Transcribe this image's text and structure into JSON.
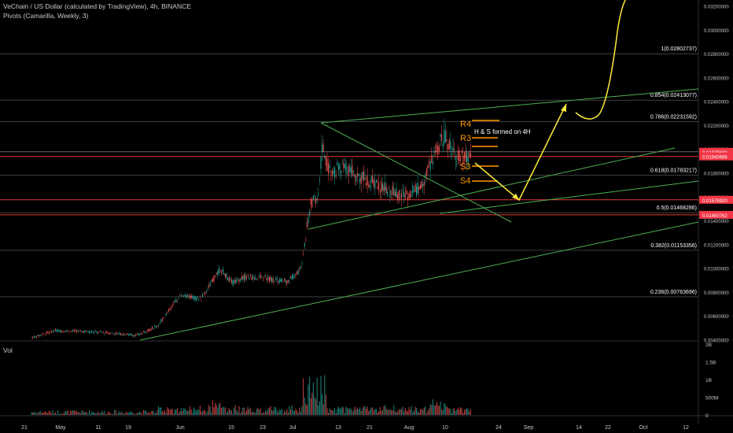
{
  "header": {
    "title": "VeChain / US Dollar (calculated by TradingView), 4h, BINANCE",
    "indicator": "Pivots (Camarilla, Weekly, 3)",
    "volume_label": "Vol"
  },
  "chart_data": {
    "type": "candlestick",
    "symbol": "VeChain / US Dollar",
    "interval": "4h",
    "exchange": "BINANCE",
    "x_tick_labels": [
      "21",
      "May",
      "11",
      "19",
      "Jun",
      "15",
      "23",
      "Jul",
      "13",
      "21",
      "Aug",
      "10",
      "24",
      "Sep",
      "14",
      "22",
      "Oct",
      "12"
    ],
    "price_axis": {
      "ylim": [
        0.004,
        0.032
      ],
      "tick_labels": [
        "0.03200000",
        "0.03000000",
        "0.02800000",
        "0.02600000",
        "0.02400000",
        "0.02200000",
        "0.02000000",
        "0.01800000",
        "0.01600000",
        "0.01400000",
        "0.01200000",
        "0.01000000",
        "0.00800000",
        "0.00600000",
        "0.00400000"
      ]
    },
    "volume_axis": {
      "ylim": [
        0,
        2000000000
      ],
      "tick_labels": [
        "2B",
        "1.5B",
        "1B",
        "500M",
        "0"
      ]
    },
    "price_badges": [
      {
        "label": "0.01979600",
        "color": "#f23645"
      },
      {
        "label": "0.01940686",
        "color": "#f23645"
      },
      {
        "label": "0.01576920",
        "color": "#f23645"
      },
      {
        "label": "0.01450762",
        "color": "#f23645"
      }
    ],
    "fibonacci_levels": [
      {
        "label": "1(0.02802737)",
        "value": 0.02802737
      },
      {
        "label": "0.854(0.02413077)",
        "value": 0.02413077
      },
      {
        "label": "0.786(0.02231592)",
        "value": 0.02231592
      },
      {
        "label": "0.618(0.01783217)",
        "value": 0.01783217
      },
      {
        "label": "0.5(0.01468286)",
        "value": 0.01468286
      },
      {
        "label": "0.382(0.01153356)",
        "value": 0.01153356
      },
      {
        "label": "0.236(0.00763696)",
        "value": 0.00763696
      }
    ],
    "pivot_labels": [
      "R4",
      "R3",
      "S3",
      "S4"
    ],
    "annotation": "H & S formed on 4H",
    "colors": {
      "up": "#26a69a",
      "down": "#ef5350",
      "trendline": "#4caf50",
      "projection": "#ffeb3b",
      "pivot": "#ff9800",
      "horizontal": "#e53935"
    }
  }
}
